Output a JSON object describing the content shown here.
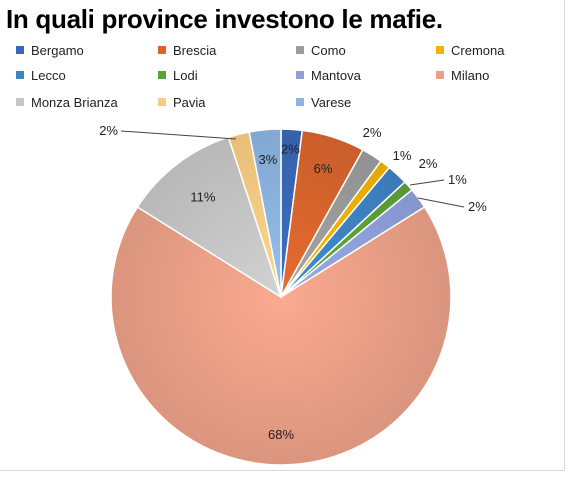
{
  "chart_data": {
    "type": "pie",
    "title": "In quali province investono le mafie.",
    "legend_position": "top",
    "slices": [
      {
        "label": "Bergamo",
        "value": 2,
        "display": "2%",
        "color": "#3a68b8"
      },
      {
        "label": "Brescia",
        "value": 6,
        "display": "6%",
        "color": "#d9652d"
      },
      {
        "label": "Como",
        "value": 2,
        "display": "2%",
        "color": "#9c9c9c"
      },
      {
        "label": "Cremona",
        "value": 1,
        "display": "1%",
        "color": "#f2b300"
      },
      {
        "label": "Lecco",
        "value": 2,
        "display": "2%",
        "color": "#3f83c4"
      },
      {
        "label": "Lodi",
        "value": 1,
        "display": "1%",
        "color": "#5aa33a"
      },
      {
        "label": "Mantova",
        "value": 2,
        "display": "2%",
        "color": "#8fa0dc"
      },
      {
        "label": "Milano",
        "value": 68,
        "display": "68%",
        "color": "#eca088"
      },
      {
        "label": "Monza Brianza",
        "value": 11,
        "display": "11%",
        "color": "#c6c6c6"
      },
      {
        "label": "Pavia",
        "value": 2,
        "display": "2%",
        "color": "#f8cc82"
      },
      {
        "label": "Varese",
        "value": 3,
        "display": "3%",
        "color": "#8cb4e2"
      }
    ]
  }
}
